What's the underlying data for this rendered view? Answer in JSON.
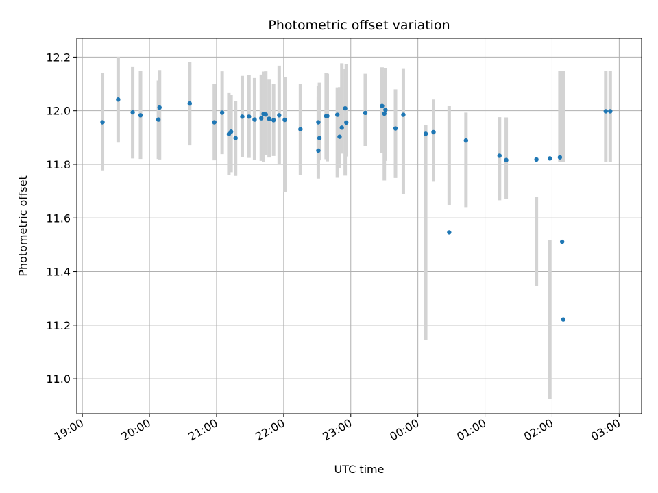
{
  "chart_data": {
    "type": "scatter",
    "title": "Photometric offset variation",
    "xlabel": "UTC time",
    "ylabel": "Photometric offset",
    "x_scale": "time",
    "xlim": [
      "18:55",
      "03:20"
    ],
    "ylim": [
      10.87,
      12.27
    ],
    "grid": true,
    "x_ticks": [
      "19:00",
      "20:00",
      "21:00",
      "22:00",
      "23:00",
      "00:00",
      "01:00",
      "02:00",
      "03:00"
    ],
    "y_ticks": [
      "11.0",
      "11.2",
      "11.4",
      "11.6",
      "11.8",
      "12.0",
      "12.2"
    ],
    "colors": {
      "point": "#1f77b4",
      "errorbar": "#d3d3d3",
      "grid": "#b0b0b0"
    },
    "series": [
      {
        "x": [
          "19:18",
          "19:32",
          "19:45",
          "19:52",
          "20:08",
          "20:09",
          "20:36",
          "20:58",
          "21:05",
          "21:11",
          "21:13",
          "21:17",
          "21:23",
          "21:29",
          "21:34",
          "21:40",
          "21:42",
          "21:44",
          "21:47",
          "21:51",
          "21:56",
          "22:01",
          "22:15",
          "22:31",
          "22:31",
          "22:32",
          "22:38",
          "22:39",
          "22:48",
          "22:50",
          "22:52",
          "22:55",
          "22:56",
          "23:13",
          "23:28",
          "23:30",
          "23:31",
          "23:40",
          "23:47",
          "00:07",
          "00:14",
          "00:28",
          "00:43",
          "01:13",
          "01:19",
          "01:46",
          "01:58",
          "02:07",
          "02:09",
          "02:10",
          "02:48",
          "02:52"
        ],
        "y": [
          11.957,
          12.042,
          11.994,
          11.983,
          11.967,
          12.012,
          12.027,
          11.957,
          11.993,
          11.913,
          11.922,
          11.898,
          11.978,
          11.978,
          11.967,
          11.972,
          11.988,
          11.986,
          11.97,
          11.965,
          11.983,
          11.966,
          11.931,
          11.851,
          11.957,
          11.898,
          11.98,
          11.98,
          11.985,
          11.903,
          11.937,
          12.009,
          11.956,
          11.992,
          12.018,
          11.989,
          12.003,
          11.934,
          11.985,
          11.914,
          11.92,
          11.546,
          11.889,
          11.832,
          11.816,
          11.818,
          11.822,
          11.826,
          11.511,
          11.221,
          11.998,
          11.998
        ],
        "error_low": [
          11.775,
          11.881,
          11.822,
          11.82,
          11.82,
          11.818,
          11.871,
          11.815,
          11.838,
          11.76,
          11.771,
          11.757,
          11.826,
          11.824,
          11.816,
          11.813,
          11.809,
          11.833,
          11.825,
          11.831,
          11.801,
          11.697,
          11.76,
          11.747,
          11.803,
          11.815,
          11.819,
          11.811,
          11.75,
          11.785,
          11.84,
          11.758,
          11.829,
          11.869,
          11.842,
          11.74,
          11.813,
          11.749,
          11.688,
          11.145,
          11.735,
          11.649,
          11.638,
          11.666,
          11.672,
          11.346,
          10.926,
          11.81,
          11.81,
          11.81,
          11.81,
          11.81
        ],
        "error_high": [
          12.14,
          12.201,
          12.163,
          12.15,
          12.113,
          12.152,
          12.182,
          12.101,
          12.147,
          12.066,
          12.058,
          12.037,
          12.13,
          12.134,
          12.122,
          12.135,
          12.146,
          12.147,
          12.116,
          12.1,
          12.168,
          12.127,
          12.1,
          12.092,
          12.051,
          12.105,
          12.14,
          12.138,
          12.087,
          12.088,
          12.177,
          12.155,
          12.174,
          12.138,
          12.162,
          12.129,
          12.159,
          12.08,
          12.156,
          11.947,
          12.042,
          12.017,
          11.993,
          11.976,
          11.975,
          11.679,
          11.517,
          12.15,
          12.15,
          12.15,
          12.15,
          12.15
        ]
      }
    ]
  }
}
